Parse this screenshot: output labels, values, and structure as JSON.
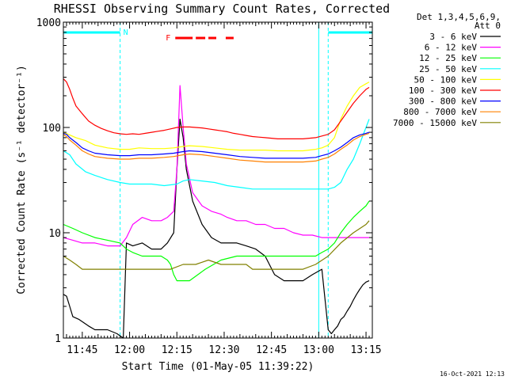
{
  "chart_data": {
    "type": "line",
    "title": "RHESSI Observing Summary Count Rates, Corrected",
    "xlabel": "Start Time (01-May-05 11:39:22)",
    "ylabel": "Corrected Count Rate (s⁻¹ detector⁻¹)",
    "yscale": "log",
    "ylim": [
      1,
      1000
    ],
    "xlim_min": [
      0,
      98
    ],
    "x_ticks": [
      {
        "t": 6,
        "label": "11:45"
      },
      {
        "t": 21,
        "label": "12:00"
      },
      {
        "t": 36,
        "label": "12:15"
      },
      {
        "t": 51,
        "label": "12:30"
      },
      {
        "t": 66,
        "label": "12:45"
      },
      {
        "t": 81,
        "label": "13:00"
      },
      {
        "t": 96,
        "label": "13:15"
      }
    ],
    "y_ticks": [
      {
        "v": 1,
        "label": "1"
      },
      {
        "v": 10,
        "label": "10"
      },
      {
        "v": 100,
        "label": "100"
      },
      {
        "v": 1000,
        "label": "1000"
      }
    ],
    "legend_header": [
      "Det 1,3,4,5,6,9,",
      "Att 0"
    ],
    "legend_position": "right",
    "grid": false,
    "annotations": {
      "night_label": "N",
      "night_bars": [
        [
          0,
          18
        ],
        [
          84,
          98
        ]
      ],
      "night_lines": [
        18,
        84,
        98
      ],
      "night_solid_lines": [
        81
      ],
      "flare_label": "F",
      "flare_segments": [
        [
          35.5,
          41
        ],
        [
          42,
          45
        ],
        [
          46,
          48.5
        ],
        [
          51.5,
          54
        ]
      ]
    },
    "series": [
      {
        "name": "3 - 6 keV",
        "color": "#000000",
        "x": [
          0,
          1,
          2,
          3,
          5,
          8,
          10,
          14,
          17,
          19,
          20,
          22,
          25,
          28,
          31,
          33,
          35,
          36,
          37,
          38,
          39,
          41,
          44,
          47,
          50,
          52,
          55,
          58,
          61,
          64,
          67,
          70,
          73,
          76,
          79,
          82,
          84,
          85,
          86,
          87,
          88,
          89,
          90,
          91,
          92,
          93,
          94,
          95,
          96,
          97
        ],
        "y": [
          2.6,
          2.5,
          2,
          1.6,
          1.5,
          1.3,
          1.2,
          1.2,
          1.1,
          1,
          8,
          7.5,
          8,
          7,
          7,
          8,
          10,
          40,
          120,
          80,
          40,
          20,
          12,
          9,
          8,
          8,
          8,
          7.5,
          7,
          6,
          4,
          3.5,
          3.5,
          3.5,
          4,
          4.5,
          1.2,
          1.1,
          1.2,
          1.3,
          1.5,
          1.6,
          1.8,
          2,
          2.3,
          2.6,
          2.9,
          3.2,
          3.4,
          3.5
        ]
      },
      {
        "name": "6 - 12 keV",
        "color": "#ff00ff",
        "x": [
          0,
          3,
          6,
          10,
          14,
          18,
          20,
          22,
          25,
          28,
          31,
          33,
          35,
          36,
          37,
          38,
          39,
          41,
          44,
          47,
          50,
          52,
          55,
          58,
          61,
          64,
          67,
          70,
          73,
          76,
          79,
          82,
          85,
          88,
          91,
          94,
          97
        ],
        "y": [
          9,
          8.5,
          8,
          8,
          7.5,
          7.5,
          9,
          12,
          14,
          13,
          13,
          14,
          16,
          40,
          250,
          100,
          45,
          24,
          18,
          16,
          15,
          14,
          13,
          13,
          12,
          12,
          11,
          11,
          10,
          9.5,
          9.5,
          9,
          9,
          9,
          9,
          9,
          9
        ]
      },
      {
        "name": "12 - 25 keV",
        "color": "#00ff00",
        "x": [
          0,
          3,
          6,
          10,
          14,
          18,
          20,
          22,
          25,
          28,
          31,
          33,
          34,
          35,
          36,
          37,
          38,
          40,
          45,
          50,
          55,
          60,
          65,
          70,
          75,
          80,
          82,
          84,
          86,
          88,
          90,
          92,
          94,
          96,
          97
        ],
        "y": [
          12,
          11,
          10,
          9,
          8.5,
          8,
          7,
          6.5,
          6,
          6,
          6,
          5.5,
          5,
          4,
          3.5,
          3.5,
          3.5,
          3.5,
          4.5,
          5.5,
          6,
          6,
          6,
          6,
          6,
          6,
          6.5,
          7,
          8,
          10,
          12,
          14,
          16,
          18,
          20
        ]
      },
      {
        "name": "25 - 50 keV",
        "color": "#00ffff",
        "x": [
          0,
          2,
          4,
          7,
          10,
          14,
          18,
          21,
          24,
          28,
          32,
          36,
          38,
          40,
          44,
          48,
          52,
          56,
          60,
          64,
          68,
          72,
          76,
          80,
          82,
          84,
          86,
          88,
          90,
          92,
          94,
          96,
          97
        ],
        "y": [
          60,
          55,
          45,
          38,
          35,
          32,
          30,
          29,
          29,
          29,
          28,
          29,
          31,
          32,
          31,
          30,
          28,
          27,
          26,
          26,
          26,
          26,
          26,
          26,
          26,
          26,
          27,
          30,
          40,
          50,
          70,
          100,
          120
        ]
      },
      {
        "name": "50 - 100 keV",
        "color": "#ffff00",
        "x": [
          0,
          2,
          4,
          7,
          10,
          14,
          18,
          21,
          24,
          28,
          32,
          35,
          38,
          40,
          44,
          48,
          52,
          56,
          60,
          64,
          68,
          72,
          76,
          80,
          82,
          84,
          86,
          88,
          90,
          92,
          94,
          96,
          97
        ],
        "y": [
          90,
          85,
          80,
          75,
          68,
          64,
          62,
          62,
          64,
          63,
          63,
          64,
          66,
          67,
          66,
          64,
          62,
          61,
          61,
          61,
          60,
          60,
          60,
          62,
          64,
          68,
          80,
          120,
          160,
          200,
          240,
          260,
          270
        ]
      },
      {
        "name": "100 - 300 keV",
        "color": "#ff0000",
        "x": [
          0,
          1,
          2,
          3,
          4,
          6,
          8,
          10,
          12,
          14,
          16,
          18,
          20,
          22,
          24,
          26,
          28,
          30,
          32,
          34,
          36,
          38,
          40,
          42,
          44,
          46,
          48,
          50,
          52,
          54,
          56,
          58,
          60,
          62,
          64,
          66,
          68,
          70,
          72,
          74,
          76,
          78,
          80,
          82,
          84,
          86,
          88,
          90,
          92,
          94,
          96,
          97
        ],
        "y": [
          290,
          270,
          230,
          190,
          160,
          135,
          115,
          105,
          98,
          93,
          89,
          87,
          86,
          87,
          86,
          88,
          90,
          92,
          94,
          97,
          100,
          101,
          101,
          100,
          99,
          97,
          95,
          93,
          91,
          88,
          86,
          84,
          82,
          81,
          80,
          79,
          78,
          78,
          78,
          78,
          78,
          79,
          80,
          83,
          86,
          95,
          115,
          140,
          170,
          200,
          230,
          240
        ]
      },
      {
        "name": "300 - 800 keV",
        "color": "#0000ff",
        "x": [
          0,
          1,
          2,
          4,
          6,
          8,
          10,
          14,
          18,
          21,
          24,
          28,
          32,
          35,
          38,
          40,
          44,
          48,
          52,
          56,
          60,
          64,
          68,
          72,
          76,
          80,
          82,
          84,
          86,
          88,
          90,
          92,
          94,
          96,
          97
        ],
        "y": [
          88,
          86,
          80,
          72,
          64,
          60,
          57,
          55,
          54,
          54,
          55,
          55,
          56,
          57,
          59,
          60,
          59,
          57,
          55,
          53,
          52,
          51,
          51,
          51,
          51,
          52,
          54,
          56,
          60,
          65,
          72,
          80,
          85,
          88,
          90
        ]
      },
      {
        "name": "800 - 7000 keV",
        "color": "#ff8000",
        "x": [
          0,
          1,
          2,
          4,
          6,
          8,
          10,
          14,
          18,
          21,
          24,
          28,
          32,
          35,
          38,
          40,
          44,
          48,
          52,
          56,
          60,
          64,
          68,
          72,
          76,
          80,
          82,
          84,
          86,
          88,
          90,
          92,
          94,
          96,
          97
        ],
        "y": [
          86,
          82,
          76,
          68,
          60,
          56,
          53,
          51,
          50,
          50,
          51,
          51,
          52,
          53,
          55,
          56,
          55,
          53,
          51,
          49,
          48,
          47,
          47,
          47,
          47,
          48,
          50,
          52,
          56,
          62,
          68,
          76,
          82,
          86,
          88
        ]
      },
      {
        "name": "7000 - 15000 keV",
        "color": "#808000",
        "x": [
          0,
          2,
          4,
          6,
          8,
          10,
          14,
          18,
          22,
          26,
          30,
          34,
          38,
          42,
          46,
          50,
          54,
          58,
          60,
          64,
          68,
          72,
          76,
          80,
          84,
          88,
          92,
          96,
          97
        ],
        "y": [
          6,
          5.5,
          5,
          4.5,
          4.5,
          4.5,
          4.5,
          4.5,
          4.5,
          4.5,
          4.5,
          4.5,
          5,
          5,
          5.5,
          5,
          5,
          5,
          4.5,
          4.5,
          4.5,
          4.5,
          4.5,
          5,
          6,
          8,
          10,
          12,
          13
        ]
      }
    ]
  },
  "footer": {
    "date": "16-Oct-2021 12:13"
  }
}
